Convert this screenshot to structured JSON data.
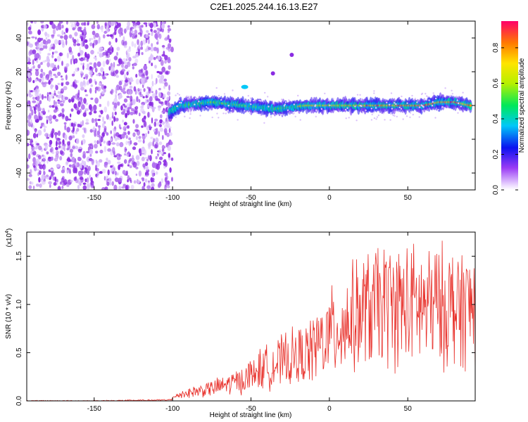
{
  "title": "C2E1.2025.244.16.13.E27",
  "chart_data": [
    {
      "type": "heatmap",
      "xlabel": "Height of straight line (km)",
      "ylabel": "Frequency (Hz)",
      "xlim": [
        -193,
        93
      ],
      "ylim": [
        -50,
        50
      ],
      "xticks": [
        -150,
        -100,
        -50,
        0,
        50
      ],
      "yticks": [
        -40,
        -20,
        0,
        20,
        40
      ],
      "colorbar": {
        "label": "Normalized spectral amplitude",
        "range": [
          0,
          0.95
        ],
        "ticks": [
          0.0,
          0.2,
          0.4,
          0.6,
          0.8
        ]
      },
      "noise_region_x": [
        -193,
        -102
      ],
      "ridge": {
        "x": [
          -102,
          -95,
          -85,
          -75,
          -65,
          -55,
          -45,
          -35,
          -25,
          -15,
          -5,
          0,
          10,
          20,
          30,
          40,
          50,
          60,
          70,
          80,
          90
        ],
        "freq": [
          -4,
          0,
          1,
          2,
          1,
          0,
          -1,
          -2,
          -1,
          0,
          0,
          0,
          0,
          0,
          0,
          0,
          0,
          0,
          2,
          2,
          0
        ]
      },
      "outliers": [
        {
          "x": -54,
          "freq": 11
        },
        {
          "x": -36,
          "freq": 19
        },
        {
          "x": -24,
          "freq": 30
        }
      ]
    },
    {
      "type": "line",
      "xlabel": "Height of straight line (km)",
      "ylabel": "SNR (10 * v/v)",
      "y_multiplier": "(x10^4)",
      "multiplier_base": "(x10",
      "multiplier_exp": "4",
      "multiplier_close": ")",
      "xlim": [
        -193,
        93
      ],
      "ylim": [
        0,
        1.75
      ],
      "xticks": [
        -150,
        -100,
        -50,
        0,
        50
      ],
      "yticks": [
        0.0,
        0.5,
        1.0,
        1.5
      ],
      "series": [
        {
          "name": "SNR",
          "color": "#e8302a",
          "x": [
            -193,
            -150,
            -102,
            -95,
            -85,
            -75,
            -65,
            -55,
            -45,
            -35,
            -25,
            -15,
            -5,
            5,
            15,
            25,
            35,
            45,
            55,
            65,
            75,
            85,
            93
          ],
          "y": [
            0.0,
            0.0,
            0.01,
            0.07,
            0.1,
            0.13,
            0.17,
            0.22,
            0.32,
            0.38,
            0.44,
            0.48,
            0.62,
            0.75,
            0.86,
            0.95,
            1.0,
            0.99,
            0.98,
            0.97,
            0.98,
            0.98,
            0.98
          ]
        }
      ]
    }
  ],
  "colors": {
    "series": "#e8302a",
    "noise": "#8a2be2"
  }
}
